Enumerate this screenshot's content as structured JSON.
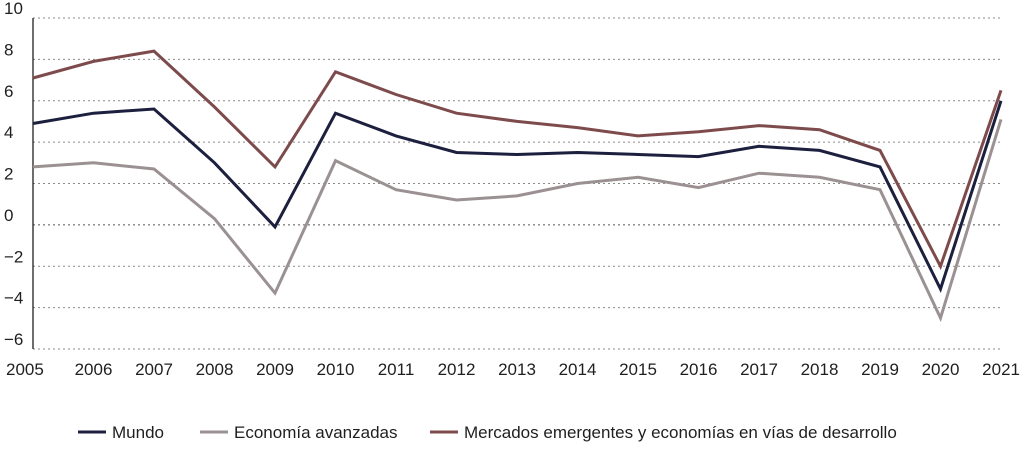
{
  "chart_data": {
    "type": "line",
    "title": "",
    "xlabel": "",
    "ylabel": "",
    "x": [
      "2005",
      "2006",
      "2007",
      "2008",
      "2009",
      "2010",
      "2011",
      "2012",
      "2013",
      "2014",
      "2015",
      "2016",
      "2017",
      "2018",
      "2019",
      "2020",
      "2021"
    ],
    "ylim": [
      -6,
      10
    ],
    "yticks": [
      "10",
      "8",
      "6",
      "4",
      "2",
      "0",
      "−2",
      "−4",
      "−6"
    ],
    "ytick_values": [
      10,
      8,
      6,
      4,
      2,
      0,
      -2,
      -4,
      -6
    ],
    "grid": "horizontal dashed",
    "legend_position": "bottom",
    "series": [
      {
        "name": "Mundo",
        "color": "#1c1f3d",
        "values": [
          4.9,
          5.4,
          5.6,
          3.0,
          -0.1,
          5.4,
          4.3,
          3.5,
          3.4,
          3.5,
          3.4,
          3.3,
          3.8,
          3.6,
          2.8,
          -3.1,
          6.0
        ]
      },
      {
        "name": "Economía avanzadas",
        "color": "#9b9192",
        "values": [
          2.8,
          3.0,
          2.7,
          0.3,
          -3.3,
          3.1,
          1.7,
          1.2,
          1.4,
          2.0,
          2.3,
          1.8,
          2.5,
          2.3,
          1.7,
          -4.5,
          5.1
        ]
      },
      {
        "name": "Mercados emergentes y economías en vías de desarrollo",
        "color": "#7e4b4c",
        "values": [
          7.1,
          7.9,
          8.4,
          5.7,
          2.8,
          7.4,
          6.3,
          5.4,
          5.0,
          4.7,
          4.3,
          4.5,
          4.8,
          4.6,
          3.6,
          -2.0,
          6.5
        ]
      }
    ]
  }
}
